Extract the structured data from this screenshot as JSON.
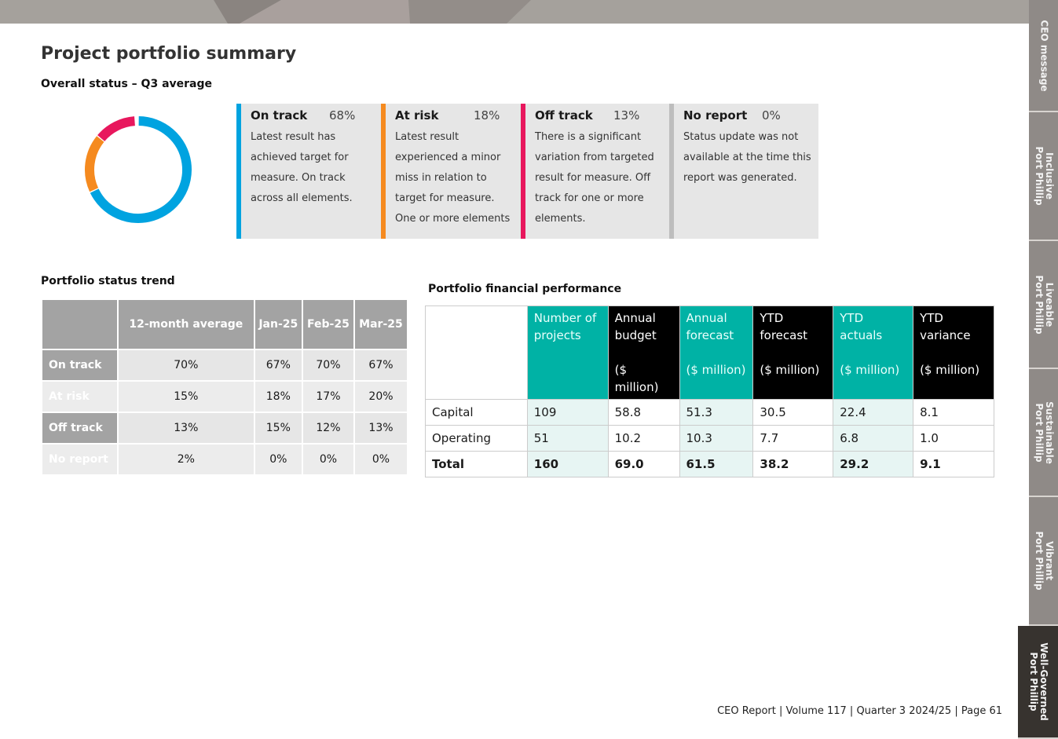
{
  "title": "Project portfolio summary",
  "overall_heading": "Overall status – Q3 average",
  "colors": {
    "on_track": "#00a3e0",
    "at_risk": "#f58a1f",
    "off_track": "#e8175d",
    "no_report": "#bdbdbd"
  },
  "status": [
    {
      "label": "On track",
      "pct": "68%",
      "value": 68,
      "desc": "Latest result has achieved target for measure. On track across all elements."
    },
    {
      "label": "At risk",
      "pct": "18%",
      "value": 18,
      "desc": "Latest result experienced a minor miss in relation to target for measure. One or more elements"
    },
    {
      "label": "Off track",
      "pct": "13%",
      "value": 13,
      "desc": "There is a significant variation from targeted result for measure. Off track for one or more elements."
    },
    {
      "label": "No report",
      "pct": "0%",
      "value": 0,
      "desc": "Status update was not available at the time this report was generated."
    }
  ],
  "trend": {
    "heading": "Portfolio status trend",
    "columns": [
      "",
      "12-month average",
      "Jan-25",
      "Feb-25",
      "Mar-25"
    ],
    "rows": [
      [
        "On track",
        "70%",
        "67%",
        "70%",
        "67%"
      ],
      [
        "At risk",
        "15%",
        "18%",
        "17%",
        "20%"
      ],
      [
        "Off track",
        "13%",
        "15%",
        "12%",
        "13%"
      ],
      [
        "No report",
        "2%",
        "0%",
        "0%",
        "0%"
      ]
    ]
  },
  "financial": {
    "heading": "Portfolio financial performance",
    "columns": [
      "",
      "Number of projects",
      "Annual budget\n\n($ million)",
      "Annual forecast\n\n($ million)",
      "YTD forecast\n\n($ million)",
      "YTD actuals\n\n($ million)",
      "YTD variance\n\n($ million)"
    ],
    "rows": [
      [
        "Capital",
        "109",
        "58.8",
        "51.3",
        "30.5",
        "22.4",
        "8.1"
      ],
      [
        "Operating",
        "51",
        "10.2",
        "10.3",
        "7.7",
        "6.8",
        "1.0"
      ],
      [
        "Total",
        "160",
        "69.0",
        "61.5",
        "38.2",
        "29.2",
        "9.1"
      ]
    ]
  },
  "tabs": [
    "CEO message",
    "Inclusive\nPort Phillip",
    "Liveable\nPort Phillip",
    "Sustainable\nPort Phillip",
    "Vibrant\nPort Phillip",
    "Well-Governed\nPort Phillip"
  ],
  "footer": "CEO Report | Volume 117  | Quarter 3 2024/25 | Page 61"
}
